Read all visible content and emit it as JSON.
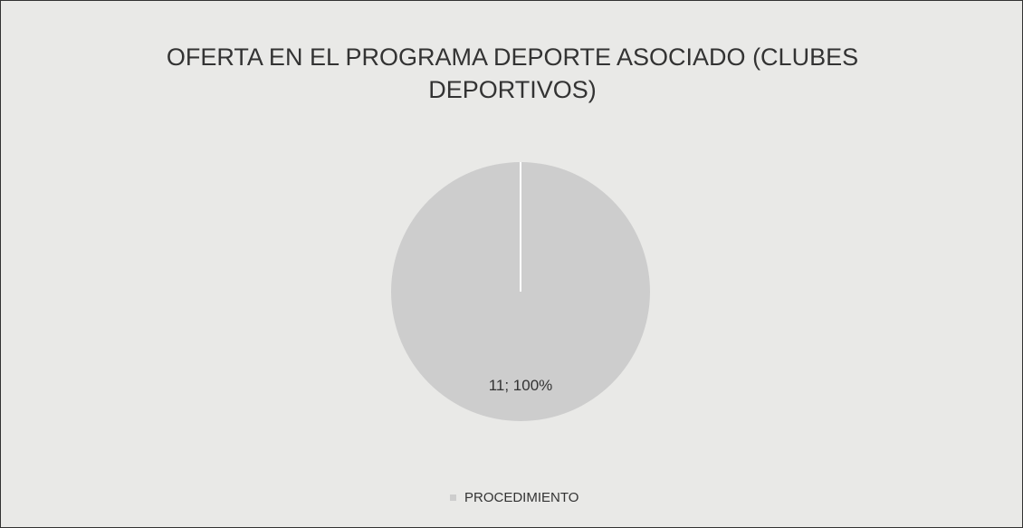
{
  "chart_data": {
    "type": "pie",
    "title": "OFERTA EN EL PROGRAMA DEPORTE ASOCIADO (CLUBES DEPORTIVOS)",
    "categories": [
      "PROCEDIMIENTO"
    ],
    "values": [
      11
    ],
    "value_labels": [
      "11; 100%"
    ],
    "colors": [
      "#cdcdcd"
    ],
    "legend": "bottom"
  }
}
